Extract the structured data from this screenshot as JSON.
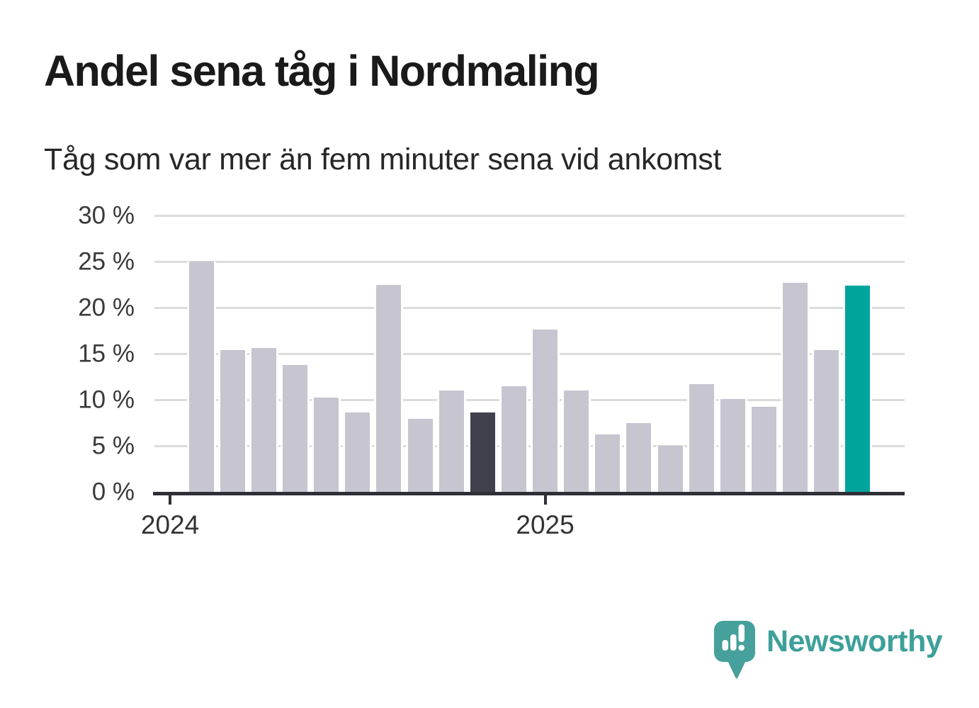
{
  "header": {
    "title": "Andel sena tåg i Nordmaling",
    "subtitle": "Tåg som var mer än fem minuter sena vid ankomst"
  },
  "brand": {
    "name": "Newsworthy"
  },
  "colors": {
    "bar_default": "#c6c5d0",
    "bar_compare": "#40404c",
    "bar_current": "#00a49c",
    "gridline": "#dcdcdc",
    "axis": "#2f2f38",
    "logo": "#46a09b",
    "logo_text": "#3ea09a"
  },
  "chart_data": {
    "type": "bar",
    "title": "Andel sena tåg i Nordmaling",
    "subtitle": "Tåg som var mer än fem minuter sena vid ankomst",
    "unit": "%",
    "grid": true,
    "y_axis": {
      "min": 0,
      "max": 30,
      "ticks": [
        {
          "value": 30,
          "label": "30 %"
        },
        {
          "value": 25,
          "label": "25 %"
        },
        {
          "value": 20,
          "label": "20 %"
        },
        {
          "value": 15,
          "label": "15 %"
        },
        {
          "value": 10,
          "label": "10 %"
        },
        {
          "value": 5,
          "label": "5 %"
        },
        {
          "value": 0,
          "label": "0 %"
        }
      ]
    },
    "x_axis": {
      "slots": 24,
      "ticks": [
        {
          "slot": 0,
          "label": "2024"
        },
        {
          "slot": 12,
          "label": "2025"
        }
      ]
    },
    "bars": [
      {
        "slot": 1,
        "month": "2024-02",
        "value": 25.0,
        "role": "default"
      },
      {
        "slot": 2,
        "month": "2024-03",
        "value": 15.4,
        "role": "default"
      },
      {
        "slot": 3,
        "month": "2024-04",
        "value": 15.6,
        "role": "default"
      },
      {
        "slot": 4,
        "month": "2024-05",
        "value": 13.8,
        "role": "default"
      },
      {
        "slot": 5,
        "month": "2024-06",
        "value": 10.2,
        "role": "default"
      },
      {
        "slot": 6,
        "month": "2024-07",
        "value": 8.6,
        "role": "default"
      },
      {
        "slot": 7,
        "month": "2024-08",
        "value": 22.5,
        "role": "default"
      },
      {
        "slot": 8,
        "month": "2024-09",
        "value": 7.9,
        "role": "default"
      },
      {
        "slot": 9,
        "month": "2024-10",
        "value": 11.0,
        "role": "default"
      },
      {
        "slot": 10,
        "month": "2024-11",
        "value": 8.6,
        "role": "compare"
      },
      {
        "slot": 11,
        "month": "2024-12",
        "value": 11.5,
        "role": "default"
      },
      {
        "slot": 12,
        "month": "2025-01",
        "value": 17.6,
        "role": "default"
      },
      {
        "slot": 13,
        "month": "2025-02",
        "value": 11.0,
        "role": "default"
      },
      {
        "slot": 14,
        "month": "2025-03",
        "value": 6.2,
        "role": "default"
      },
      {
        "slot": 15,
        "month": "2025-04",
        "value": 7.5,
        "role": "default"
      },
      {
        "slot": 16,
        "month": "2025-05",
        "value": 5.0,
        "role": "default"
      },
      {
        "slot": 17,
        "month": "2025-06",
        "value": 11.7,
        "role": "default"
      },
      {
        "slot": 18,
        "month": "2025-07",
        "value": 10.1,
        "role": "default"
      },
      {
        "slot": 19,
        "month": "2025-08",
        "value": 9.2,
        "role": "default"
      },
      {
        "slot": 20,
        "month": "2025-09",
        "value": 22.7,
        "role": "default"
      },
      {
        "slot": 21,
        "month": "2025-10",
        "value": 15.4,
        "role": "default"
      },
      {
        "slot": 22,
        "month": "2025-11",
        "value": 22.4,
        "role": "current"
      }
    ]
  }
}
